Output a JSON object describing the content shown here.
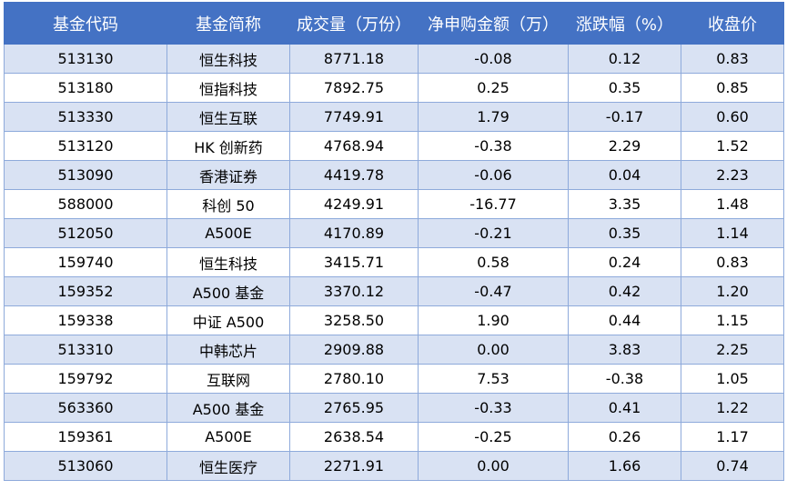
{
  "header": {
    "col_code": "基金代码",
    "col_name": "基金简称",
    "col_volume": "成交量（万份）",
    "col_net_sub": "净申购金额（万）",
    "col_change": "涨跌幅（%）",
    "col_close": "收盘价"
  },
  "rows": [
    {
      "code": "513130",
      "name": "恒生科技",
      "volume": "8771.18",
      "net": "-0.08",
      "change": "0.12",
      "close": "0.83"
    },
    {
      "code": "513180",
      "name": "恒指科技",
      "volume": "7892.75",
      "net": "0.25",
      "change": "0.35",
      "close": "0.85"
    },
    {
      "code": "513330",
      "name": "恒生互联",
      "volume": "7749.91",
      "net": "1.79",
      "change": "-0.17",
      "close": "0.60"
    },
    {
      "code": "513120",
      "name": "HK 创新药",
      "volume": "4768.94",
      "net": "-0.38",
      "change": "2.29",
      "close": "1.52"
    },
    {
      "code": "513090",
      "name": "香港证券",
      "volume": "4419.78",
      "net": "-0.06",
      "change": "0.04",
      "close": "2.23"
    },
    {
      "code": "588000",
      "name": "科创 50",
      "volume": "4249.91",
      "net": "-16.77",
      "change": "3.35",
      "close": "1.48"
    },
    {
      "code": "512050",
      "name": "A500E",
      "volume": "4170.89",
      "net": "-0.21",
      "change": "0.35",
      "close": "1.14"
    },
    {
      "code": "159740",
      "name": "恒生科技",
      "volume": "3415.71",
      "net": "0.58",
      "change": "0.24",
      "close": "0.83"
    },
    {
      "code": "159352",
      "name": "A500 基金",
      "volume": "3370.12",
      "net": "-0.47",
      "change": "0.42",
      "close": "1.20"
    },
    {
      "code": "159338",
      "name": "中证 A500",
      "volume": "3258.50",
      "net": "1.90",
      "change": "0.44",
      "close": "1.15"
    },
    {
      "code": "513310",
      "name": "中韩芯片",
      "volume": "2909.88",
      "net": "0.00",
      "change": "3.83",
      "close": "2.25"
    },
    {
      "code": "159792",
      "name": "互联网",
      "volume": "2780.10",
      "net": "7.53",
      "change": "-0.38",
      "close": "1.05"
    },
    {
      "code": "563360",
      "name": "A500 基金",
      "volume": "2765.95",
      "net": "-0.33",
      "change": "0.41",
      "close": "1.22"
    },
    {
      "code": "159361",
      "name": "A500E",
      "volume": "2638.54",
      "net": "-0.25",
      "change": "0.26",
      "close": "1.17"
    },
    {
      "code": "513060",
      "name": "恒生医疗",
      "volume": "2271.91",
      "net": "0.00",
      "change": "1.66",
      "close": "0.74"
    }
  ],
  "colors": {
    "header_bg": "#4472c4",
    "header_text": "#ffffff",
    "band_row": "#d9e2f3",
    "plain_row": "#ffffff",
    "border": "#8eaadb"
  }
}
